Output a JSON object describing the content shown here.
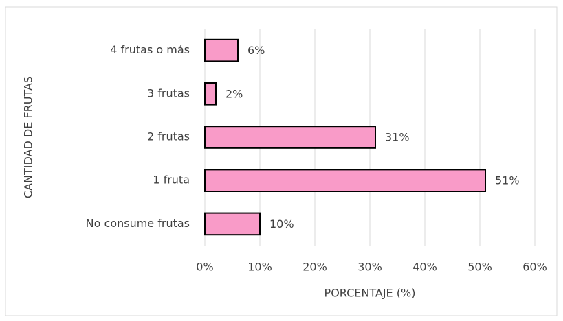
{
  "chart_data": {
    "type": "hbar",
    "categories": [
      "4 frutas o más",
      "3 frutas",
      "2 frutas",
      "1 fruta",
      "No consume frutas"
    ],
    "values": [
      6,
      2,
      31,
      51,
      10
    ],
    "value_labels": [
      "6%",
      "2%",
      "31%",
      "51%",
      "10%"
    ],
    "color": "#f99bc8",
    "xlabel": "PORCENTAJE (%)",
    "ylabel": "CANTIDAD DE FRUTAS",
    "xlim": [
      0,
      60
    ],
    "xticks": [
      {
        "value": 0,
        "label": "0%"
      },
      {
        "value": 10,
        "label": "10%"
      },
      {
        "value": 20,
        "label": "20%"
      },
      {
        "value": 30,
        "label": "30%"
      },
      {
        "value": 40,
        "label": "40%"
      },
      {
        "value": 50,
        "label": "50%"
      },
      {
        "value": 60,
        "label": "60%"
      }
    ],
    "grid": true
  }
}
